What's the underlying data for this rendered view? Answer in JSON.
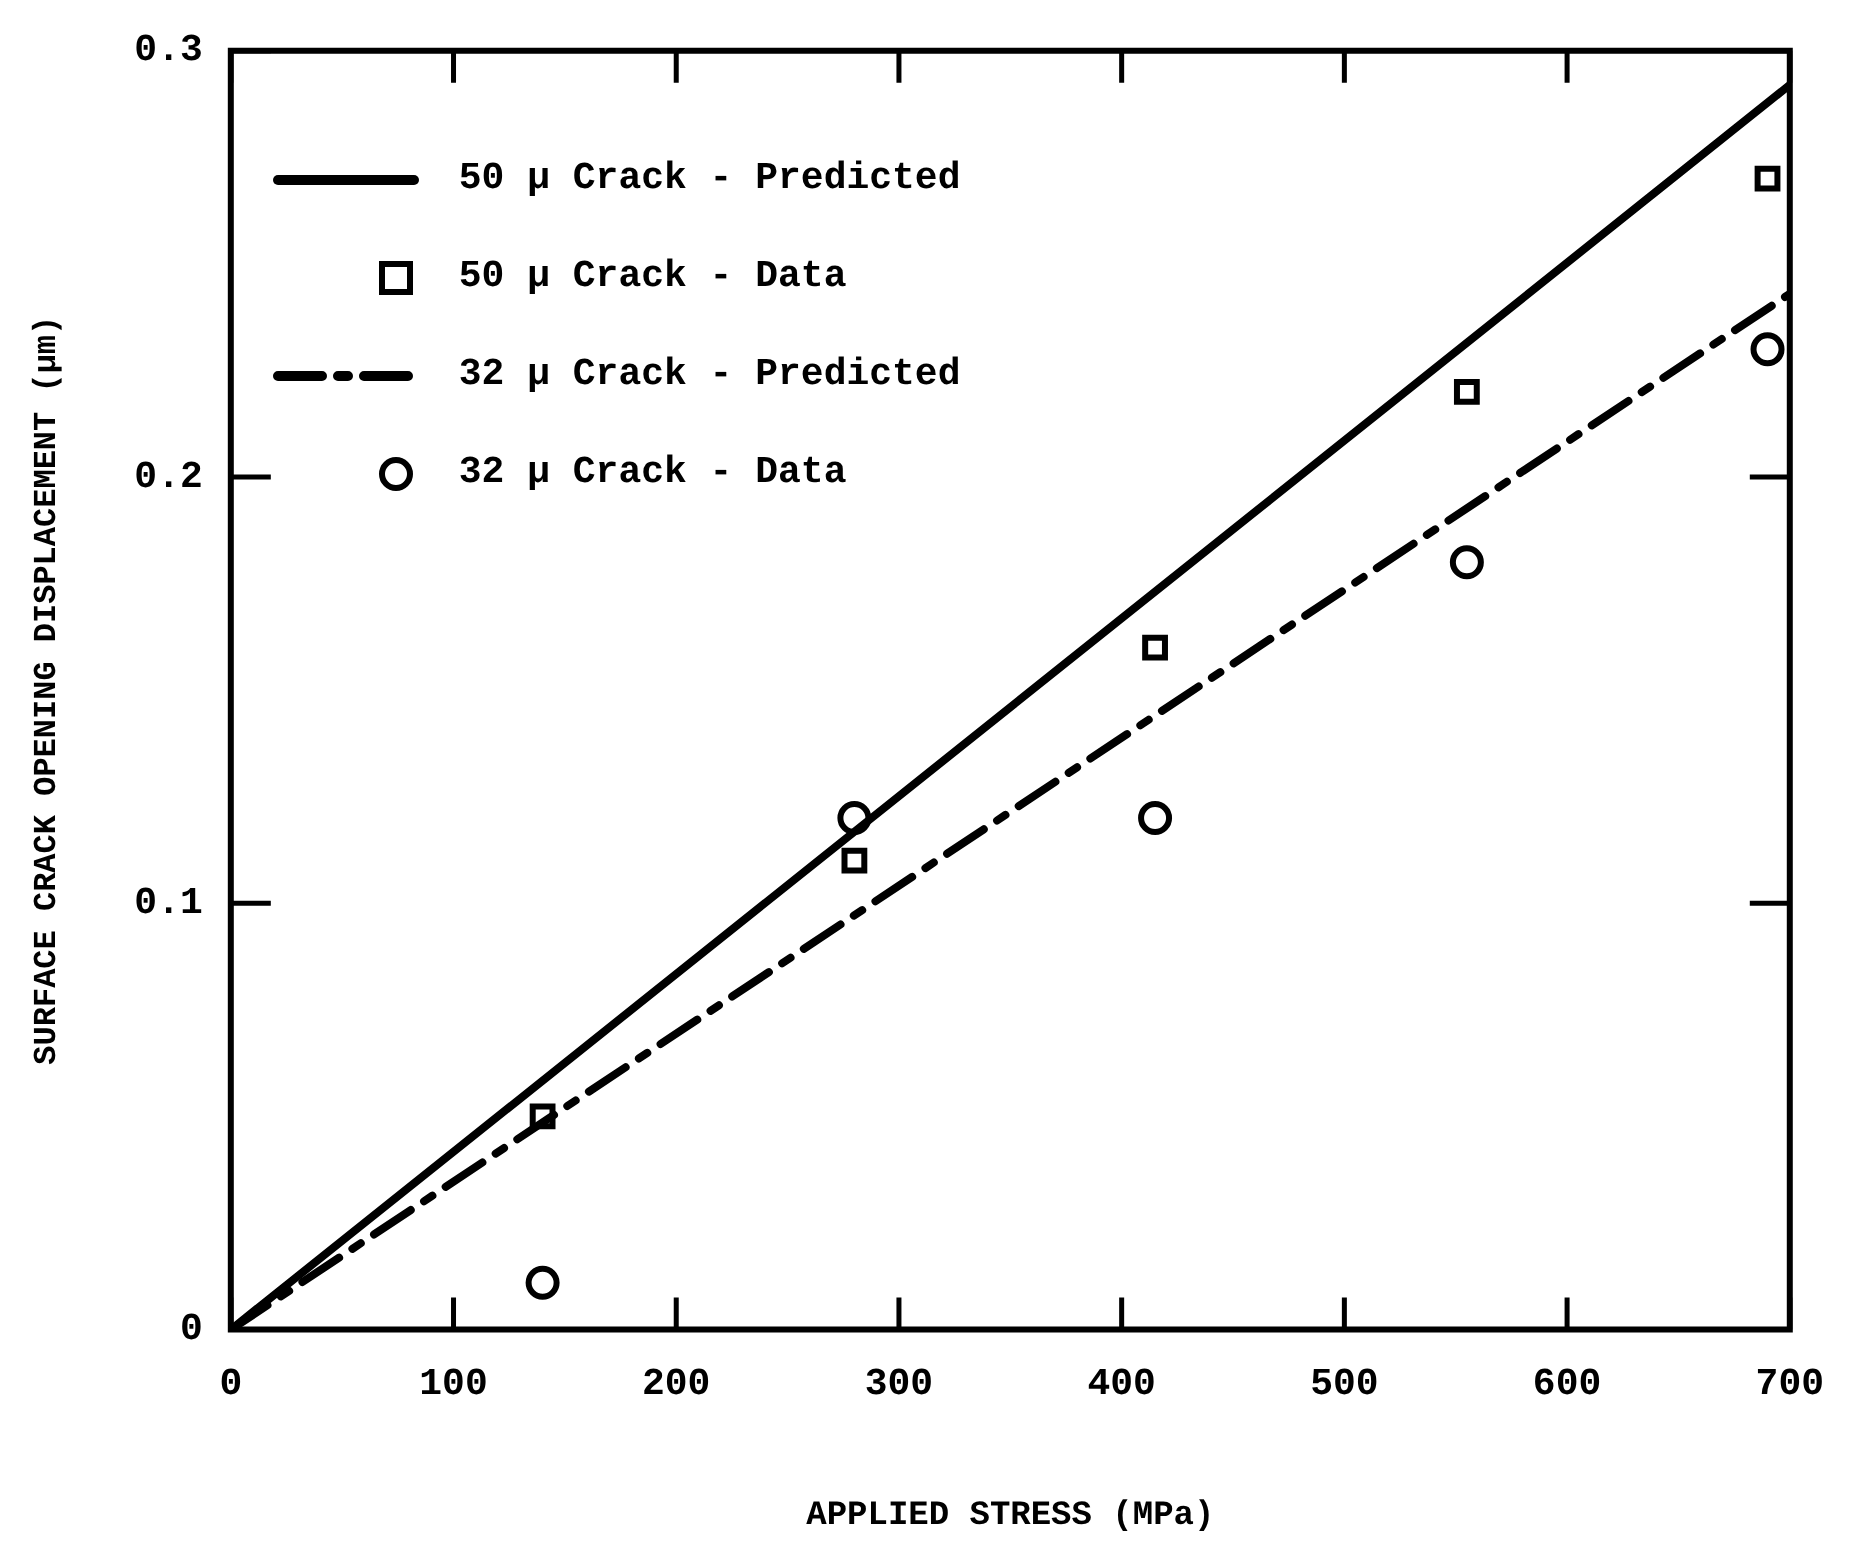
{
  "chart_data": {
    "type": "scatter",
    "xlabel": "APPLIED STRESS (MPa)",
    "ylabel": "SURFACE CRACK OPENING DISPLACEMENT (μm)",
    "xlim": [
      0,
      700
    ],
    "xticks": [
      0,
      100,
      200,
      300,
      400,
      500,
      600,
      700
    ],
    "ylim": [
      0,
      0.3
    ],
    "yticks": [
      0,
      0.1,
      0.2,
      0.3
    ],
    "grid": false,
    "legend": "top left",
    "series": [
      {
        "name": "50 μ Crack - Predicted",
        "type": "line",
        "color": "#000000",
        "line_style": "solid",
        "marker": "none",
        "x": [
          0,
          700
        ],
        "values": [
          0,
          0.292
        ]
      },
      {
        "name": "50 μ Crack - Data",
        "type": "scatter",
        "color": "#000000",
        "marker": "square",
        "x": [
          140,
          280,
          415,
          555,
          690
        ],
        "values": [
          0.05,
          0.11,
          0.16,
          0.22,
          0.27
        ]
      },
      {
        "name": "32 μ Crack - Predicted",
        "type": "line",
        "color": "#000000",
        "line_style": "dashed",
        "marker": "none",
        "x": [
          0,
          700
        ],
        "values": [
          0,
          0.243
        ]
      },
      {
        "name": "32 μ Crack - Data",
        "type": "scatter",
        "color": "#000000",
        "marker": "circle",
        "x": [
          140,
          280,
          415,
          555,
          690
        ],
        "values": [
          0.011,
          0.12,
          0.12,
          0.18,
          0.23
        ]
      }
    ]
  }
}
